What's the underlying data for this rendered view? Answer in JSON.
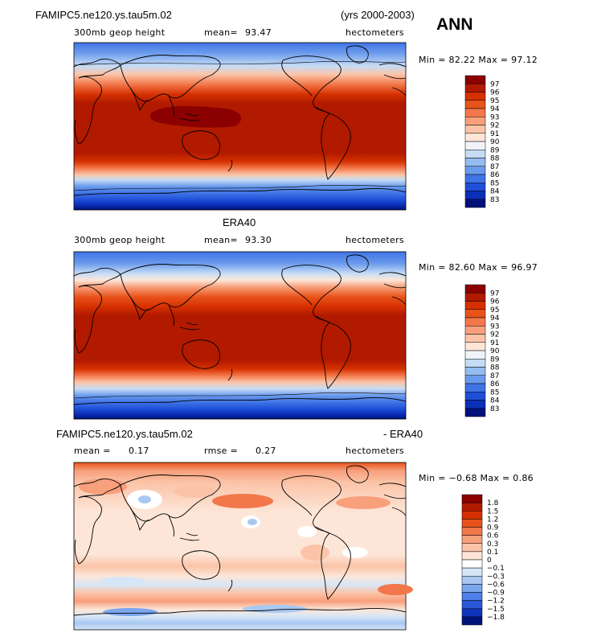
{
  "header": {
    "case_name": "FAMIPC5.ne120.ys.tau5m.02",
    "years": "(yrs 2000-2003)",
    "season": "ANN"
  },
  "panels": [
    {
      "id": "model",
      "title": "",
      "variable": "300mb geop height",
      "stat_label": "mean=",
      "stat_value": "93.47",
      "units": "hectometers",
      "minmax": "Min =  82.22 Max =  97.12",
      "colorbar": {
        "labels": [
          "97",
          "96",
          "95",
          "94",
          "93",
          "92",
          "91",
          "90",
          "89",
          "88",
          "87",
          "86",
          "85",
          "84",
          "83"
        ],
        "colors": [
          "#8b0000",
          "#b21a00",
          "#d63000",
          "#e8531a",
          "#f2774a",
          "#f89f7c",
          "#fbc4a8",
          "#fde6d8",
          "#f0f4fa",
          "#c6dcf5",
          "#94bcf0",
          "#6a9aec",
          "#3f74e6",
          "#1f4fd8",
          "#0b2fb8",
          "#00127a"
        ]
      }
    },
    {
      "id": "obs",
      "title": "ERA40",
      "variable": "300mb geop height",
      "stat_label": "mean=",
      "stat_value": "93.30",
      "units": "hectometers",
      "minmax": "Min =  82.60 Max =  96.97",
      "colorbar": {
        "labels": [
          "97",
          "96",
          "95",
          "94",
          "93",
          "92",
          "91",
          "90",
          "89",
          "88",
          "87",
          "86",
          "85",
          "84",
          "83"
        ],
        "colors": [
          "#8b0000",
          "#b21a00",
          "#d63000",
          "#e8531a",
          "#f2774a",
          "#f89f7c",
          "#fbc4a8",
          "#fde6d8",
          "#f0f4fa",
          "#c6dcf5",
          "#94bcf0",
          "#6a9aec",
          "#3f74e6",
          "#1f4fd8",
          "#0b2fb8",
          "#00127a"
        ]
      }
    },
    {
      "id": "diff",
      "title_left": "FAMIPC5.ne120.ys.tau5m.02",
      "title_right": "- ERA40",
      "stat_label": "mean =",
      "stat_value": "0.17",
      "rmse_label": "rmse =",
      "rmse_value": "0.27",
      "units": "hectometers",
      "minmax": "Min = −0.68 Max =   0.86",
      "colorbar": {
        "labels": [
          "1.8",
          "1.5",
          "1.2",
          "0.9",
          "0.6",
          "0.3",
          "0.1",
          "0",
          "−0.1",
          "−0.3",
          "−0.6",
          "−0.9",
          "−1.2",
          "−1.5",
          "−1.8"
        ],
        "colors": [
          "#8b0000",
          "#b21a00",
          "#d63000",
          "#e8531a",
          "#f2774a",
          "#f89f7c",
          "#fbc4a8",
          "#fde6d8",
          "#ffffff",
          "#d6e6f7",
          "#a8c8f2",
          "#7aa6ee",
          "#4d80e8",
          "#2a58d9",
          "#0f34ba",
          "#00127a"
        ]
      }
    }
  ]
}
